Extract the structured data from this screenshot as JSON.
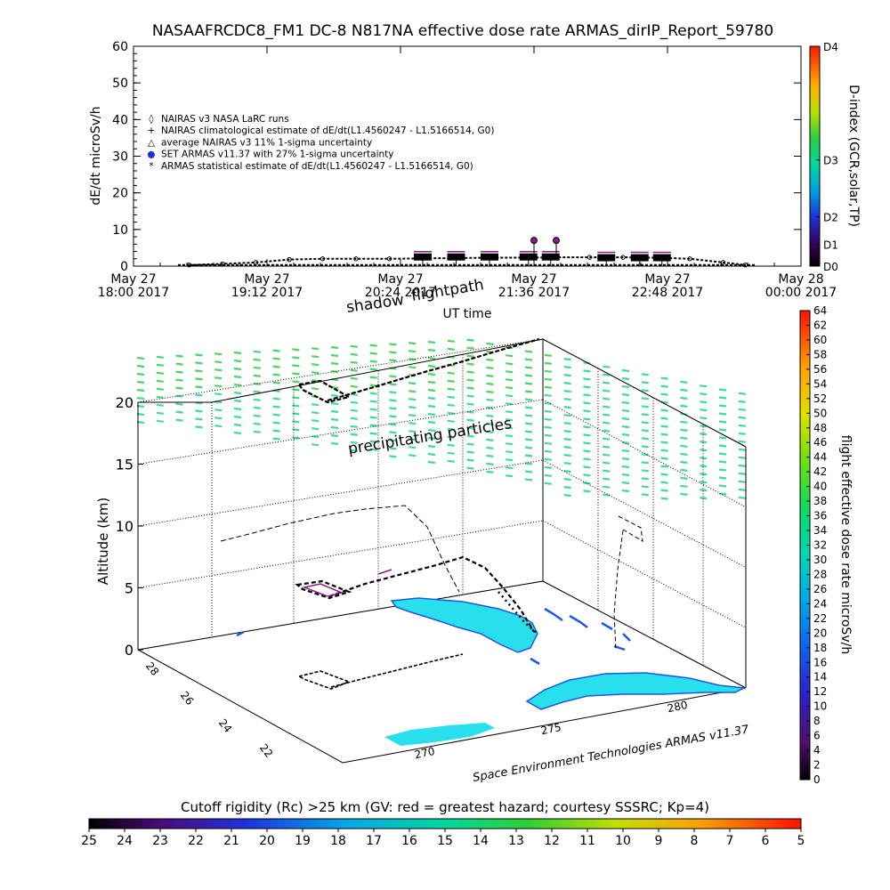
{
  "title": "NASAAFRCDC8_FM1 DC-8    N817NA effective dose rate ARMAS_dirIP_Report_59780",
  "chart_data": [
    {
      "type": "line",
      "name": "dose-rate-timeseries",
      "ylabel": "dE/dt microSv/h",
      "xlabel": "UT time",
      "ylim": [
        0,
        60
      ],
      "y_ticks": [
        "0",
        "10",
        "20",
        "30",
        "40",
        "50",
        "60"
      ],
      "x_ticks": [
        {
          "line1": "May 27",
          "line2": "18:00 2017"
        },
        {
          "line1": "May 27",
          "line2": "19:12 2017"
        },
        {
          "line1": "May 27",
          "line2": "20:24 2017"
        },
        {
          "line1": "May 27",
          "line2": "21:36 2017"
        },
        {
          "line1": "May 27",
          "line2": "22:48 2017"
        },
        {
          "line1": "May 28",
          "line2": "00:00 2017"
        }
      ],
      "x_hours": [
        18.0,
        19.2,
        20.4,
        21.6,
        22.8,
        24.0
      ],
      "legend": [
        "NAIRAS v3 NASA LaRC runs",
        "NAIRAS climatological estimate of dE/dt(L1.4560247 - L1.5166514, G0)",
        "average NAIRAS v3 11% 1-sigma uncertainty",
        "SET ARMAS v11.37 with 27% 1-sigma uncertainty",
        "ARMAS statistical estimate of dE/dt(L1.4560247 - L1.5166514, G0)"
      ],
      "series": [
        {
          "name": "NAIRAS v3 NASA LaRC runs",
          "x": [
            18.5,
            18.8,
            19.1,
            19.4,
            19.7,
            20.0,
            20.3,
            20.6,
            20.9,
            21.2,
            21.5,
            21.8,
            22.1,
            22.4,
            22.7,
            23.0,
            23.3,
            23.5
          ],
          "y": [
            0.3,
            0.6,
            1.0,
            1.8,
            2.0,
            2.0,
            2.0,
            2.1,
            2.2,
            2.3,
            2.3,
            2.4,
            2.4,
            2.4,
            2.3,
            2.0,
            1.0,
            0.3
          ]
        },
        {
          "name": "ARMAS statistical estimate of dE/dt(L1.4560247 - L1.5166514, G0)",
          "x": [
            20.6,
            20.9,
            21.2,
            21.55,
            21.75,
            22.25,
            22.55,
            22.75
          ],
          "y": [
            2.5,
            2.5,
            2.5,
            2.5,
            2.5,
            2.3,
            2.3,
            2.3
          ]
        },
        {
          "name": "SET ARMAS v11.37 with 27% 1-sigma uncertainty",
          "x": [
            21.6,
            21.8
          ],
          "y": [
            7.0,
            7.0
          ]
        }
      ],
      "d_index": {
        "label": "D-index (GCR,solar,TP)",
        "ticks": [
          {
            "name": "D0",
            "value": 0
          },
          {
            "name": "D1",
            "value": 6
          },
          {
            "name": "D2",
            "value": 13.5
          },
          {
            "name": "D3",
            "value": 29
          },
          {
            "name": "D4",
            "value": 60
          }
        ]
      }
    },
    {
      "type": "scatter",
      "name": "3d-flightpath",
      "ylabel": "Altitude (km)",
      "z_ticks": [
        "0",
        "5",
        "10",
        "15",
        "20"
      ],
      "lat_ticks": [
        "22",
        "24",
        "26",
        "28"
      ],
      "lon_ticks": [
        "270",
        "275",
        "280"
      ],
      "annotations": [
        "flightpath",
        "shadow",
        "precipitating particles"
      ],
      "credit": "Space Environment Technologies ARMAS v11.37",
      "colorbar": {
        "label": "flight effective dose rate microSv/h",
        "min": 0,
        "max": 64,
        "ticks": [
          "0",
          "2",
          "4",
          "6",
          "8",
          "10",
          "12",
          "14",
          "16",
          "18",
          "20",
          "22",
          "24",
          "26",
          "28",
          "30",
          "32",
          "34",
          "36",
          "38",
          "40",
          "42",
          "44",
          "46",
          "48",
          "50",
          "52",
          "54",
          "56",
          "58",
          "60",
          "62",
          "64"
        ]
      }
    },
    {
      "type": "heatmap",
      "name": "cutoff-rigidity-colorbar",
      "title": "Cutoff rigidity (Rc) >25 km (GV: red = greatest hazard; courtesy SSSRC; Kp=4)",
      "ticks": [
        "25",
        "24",
        "23",
        "22",
        "21",
        "20",
        "19",
        "18",
        "17",
        "16",
        "15",
        "14",
        "13",
        "12",
        "11",
        "10",
        "9",
        "8",
        "7",
        "6",
        "5"
      ]
    }
  ],
  "colors": {
    "particles": "#3ddc9c",
    "particles_top": "#4cd560",
    "land": "#28e0ec",
    "coast": "#1f56e6",
    "path": "#000000",
    "path_accent": "#8a1c8a"
  },
  "labels": {
    "x_axis_top": "UT time"
  }
}
